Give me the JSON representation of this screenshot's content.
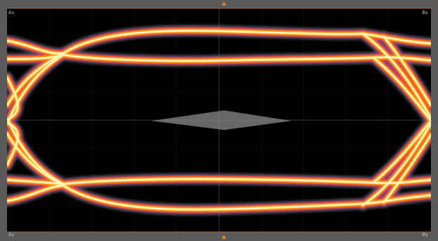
{
  "display": {
    "background_color": "#000000",
    "frame_color": "#5a5a5a",
    "grid_color": "#3a3a3a",
    "marker_color": "#c06a28"
  },
  "markers": {
    "top_left": "Ax",
    "top_right": "Bx",
    "bottom_left": "Ay",
    "bottom_right": "By"
  },
  "eye_diagram": {
    "trace_colors": [
      "#4a9a5a",
      "#c030c0",
      "#ff5010",
      "#ffa020",
      "#ffe060",
      "#fffbe0"
    ],
    "mask_color": "#8a8a8a"
  }
}
